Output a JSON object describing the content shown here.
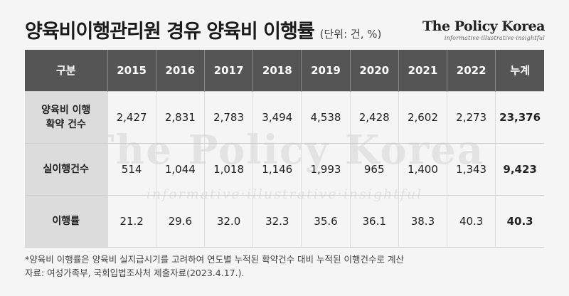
{
  "title": "양육비이행관리원 경유 양육비 이행률",
  "unit": "(단위: 건, %)",
  "brand": {
    "name": "The Policy Korea",
    "tagline": "informative·illustrative·insightful"
  },
  "watermark": {
    "name": "The Policy Korea",
    "tagline": "informative·illustrative·insightful"
  },
  "table": {
    "header": [
      "구분",
      "2015",
      "2016",
      "2017",
      "2018",
      "2019",
      "2020",
      "2021",
      "2022",
      "누계"
    ],
    "rows": [
      {
        "label_line1": "양육비 이행",
        "label_line2": "확약 건수",
        "values": [
          "2,427",
          "2,831",
          "2,783",
          "3,494",
          "4,538",
          "2,428",
          "2,602",
          "2,273"
        ],
        "total": "23,376"
      },
      {
        "label_line1": "실이행건수",
        "label_line2": "",
        "values": [
          "514",
          "1,044",
          "1,018",
          "1,146",
          "1,993",
          "965",
          "1,400",
          "1,343"
        ],
        "total": "9,423"
      },
      {
        "label_line1": "이행률",
        "label_line2": "",
        "values": [
          "21.2",
          "29.6",
          "32.0",
          "32.3",
          "35.6",
          "36.1",
          "38.3",
          "40.3"
        ],
        "total": "40.3"
      }
    ]
  },
  "notes": {
    "line1": "*양육비 이행률은 양육비 실지급시기를 고려하여 연도별 누적된 확약건수 대비 누적된 이행건수로 계산",
    "line2": "자료: 여성가족부, 국회입법조사처 제출자료(2023.4.17.)."
  },
  "colors": {
    "background": "#f5f5f5",
    "header_bg": "#555555",
    "row_label_bg": "#dcdcdc"
  }
}
